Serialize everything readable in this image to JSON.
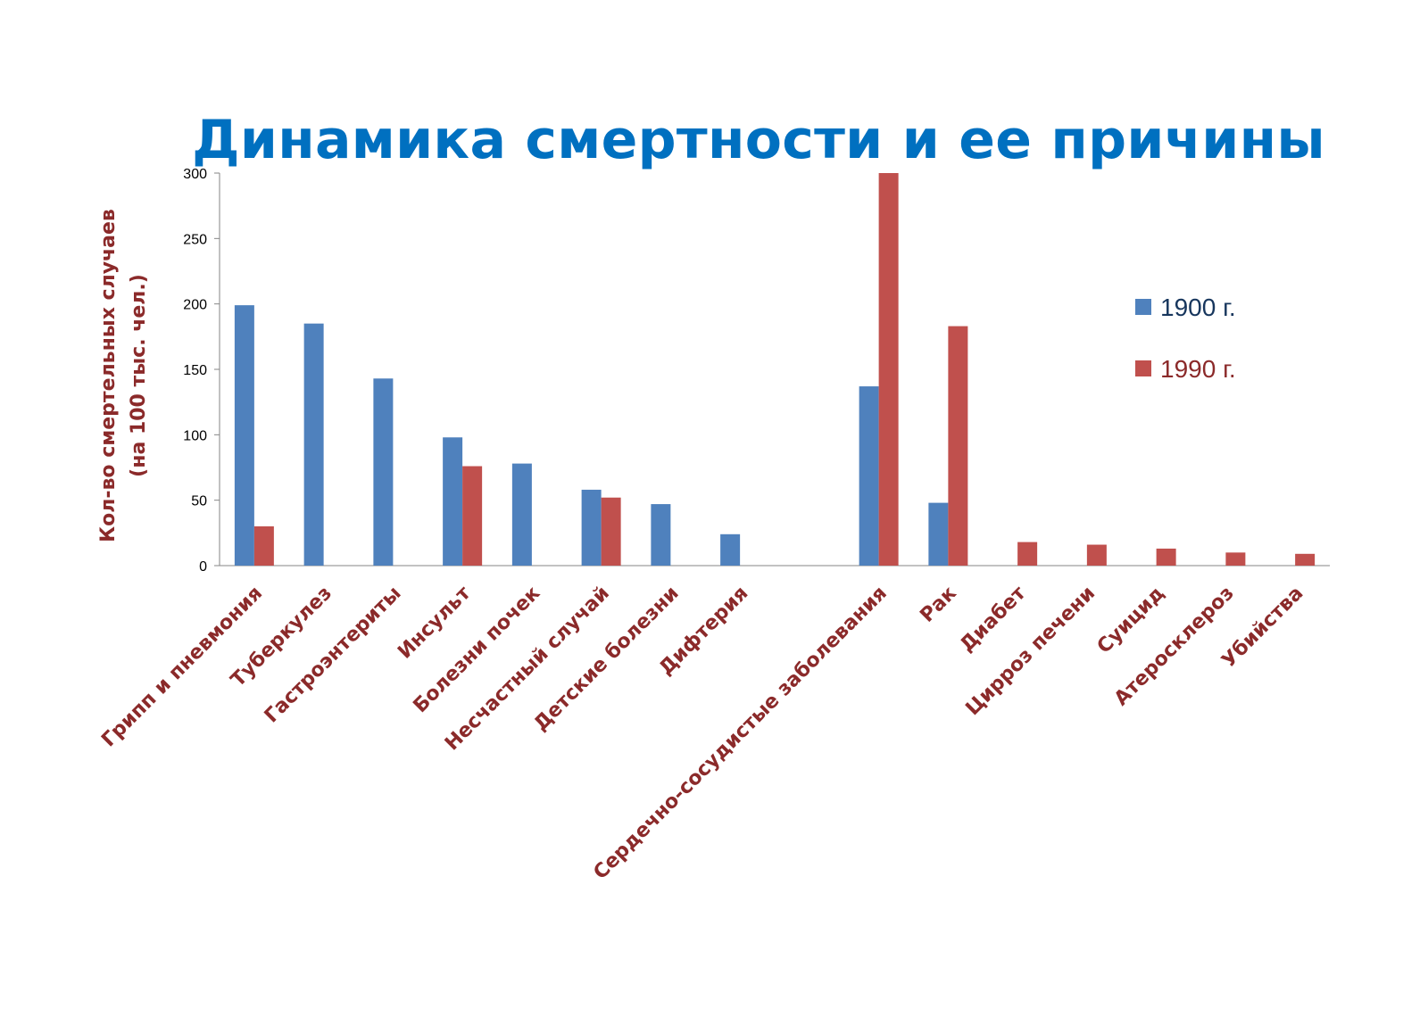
{
  "chart_data": {
    "type": "bar",
    "title": "Динамика смертности и ее причины",
    "ylabel": "Кол-во смертельных случаев (на 100 тыс. чел.)",
    "ylabel_lines": [
      "Кол-во смертельных случаев",
      "(на 100 тыс. чел.)"
    ],
    "xlabel": "",
    "ylim": [
      0,
      300
    ],
    "yticks": [
      0,
      50,
      100,
      150,
      200,
      250,
      300
    ],
    "grid": false,
    "legend_position": "right",
    "categories": [
      "Грипп и пневмония",
      "Туберкулез",
      "Гастроэнтериты",
      "Инсульт",
      "Болезни почек",
      "Несчастный случай",
      "Детские болезни",
      "Дифтерия",
      "",
      "Сердечно-сосудистые заболевания",
      "Рак",
      "Диабет",
      "Цирроз печени",
      "Суицид",
      "Атеросклероз",
      "Убийства"
    ],
    "series": [
      {
        "name": "1900 г.",
        "color": "#4f81bd",
        "values": [
          199,
          185,
          143,
          98,
          78,
          58,
          47,
          24,
          null,
          137,
          48,
          null,
          null,
          null,
          null,
          null
        ]
      },
      {
        "name": "1990 г.",
        "color": "#c0504d",
        "values": [
          30,
          null,
          null,
          76,
          null,
          52,
          null,
          null,
          null,
          300,
          183,
          18,
          16,
          13,
          10,
          9
        ]
      }
    ],
    "colors": {
      "title": "#0070c0",
      "category_label": "#8b2a2a",
      "ylabel": "#8b2a2a",
      "legend_1900_text": "#17365d",
      "legend_1990_text": "#8b2a2a",
      "axis": "#868686",
      "tick_text": "#000000"
    }
  }
}
